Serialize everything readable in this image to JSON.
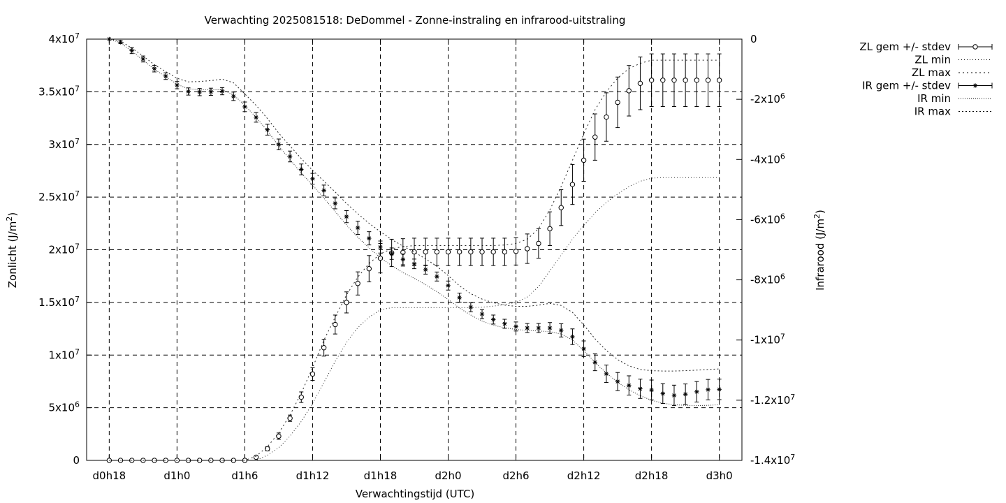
{
  "chart_data": {
    "type": "line",
    "title": "Verwachting 2025081518: DeDommel - Zonne-instraling en infrarood-uitstraling",
    "xlabel": "Verwachtingstijd (UTC)",
    "ylabel_left": "Zonlicht (J/m²)",
    "ylabel_right": "Infrarood (J/m²)",
    "grid": true,
    "legend_position": "outside-right",
    "x_unit": "hours since d0h18",
    "x_tick_hours": [
      0,
      6,
      12,
      18,
      24,
      30,
      36,
      42,
      48,
      54
    ],
    "x_tick_labels": [
      "d0h18",
      "d1h0",
      "d1h6",
      "d1h12",
      "d1h18",
      "d2h0",
      "d2h6",
      "d2h12",
      "d2h18",
      "d3h0"
    ],
    "x_range": [
      -2,
      56
    ],
    "ylim_left": [
      0,
      40000000
    ],
    "ylim_right": [
      -14000000,
      0
    ],
    "left_ticks": [
      0,
      5000000,
      10000000,
      15000000,
      20000000,
      25000000,
      30000000,
      35000000,
      40000000
    ],
    "left_tick_labels": [
      "0",
      "5x10^6",
      "1x10^7",
      "1.5x10^7",
      "2x10^7",
      "2.5x10^7",
      "3x10^7",
      "3.5x10^7",
      "4x10^7"
    ],
    "right_ticks": [
      0,
      -2000000,
      -4000000,
      -6000000,
      -8000000,
      -10000000,
      -12000000,
      -14000000
    ],
    "right_tick_labels": [
      "0",
      "-2x10^6",
      "-4x10^6",
      "-6x10^6",
      "-8x10^6",
      "-1x10^7",
      "-1.2x10^7",
      "-1.4x10^7"
    ],
    "x": [
      0,
      1,
      2,
      3,
      4,
      5,
      6,
      7,
      8,
      9,
      10,
      11,
      12,
      13,
      14,
      15,
      16,
      17,
      18,
      19,
      20,
      21,
      22,
      23,
      24,
      25,
      26,
      27,
      28,
      29,
      30,
      31,
      32,
      33,
      34,
      35,
      36,
      37,
      38,
      39,
      40,
      41,
      42,
      43,
      44,
      45,
      46,
      47,
      48,
      49,
      50,
      51,
      52,
      53,
      54
    ],
    "series": [
      {
        "name": "ZL gem +/- stdev",
        "axis": "left",
        "style": "points-errorbars",
        "marker": "circle",
        "values": [
          0,
          0,
          0,
          0,
          0,
          0,
          0,
          0,
          0,
          0,
          0,
          0,
          0,
          300000,
          1100000,
          2300000,
          4000000,
          6000000,
          8200000,
          10700000,
          12900000,
          15000000,
          16800000,
          18200000,
          19200000,
          19700000,
          19750000,
          19800000,
          19800000,
          19800000,
          19800000,
          19800000,
          19800000,
          19800000,
          19800000,
          19800000,
          19850000,
          20100000,
          20600000,
          22000000,
          24000000,
          26200000,
          28500000,
          30700000,
          32600000,
          34000000,
          35100000,
          35800000,
          36100000,
          36100000,
          36100000,
          36100000,
          36100000,
          36100000,
          36100000
        ],
        "errors": [
          0,
          0,
          0,
          0,
          0,
          0,
          0,
          0,
          0,
          0,
          0,
          0,
          0,
          100000,
          200000,
          300000,
          300000,
          500000,
          600000,
          800000,
          900000,
          1000000,
          1100000,
          1250000,
          1400000,
          1300000,
          1300000,
          1300000,
          1300000,
          1300000,
          1300000,
          1300000,
          1300000,
          1300000,
          1300000,
          1300000,
          1300000,
          1400000,
          1400000,
          1600000,
          1700000,
          1900000,
          2000000,
          2200000,
          2300000,
          2400000,
          2400000,
          2500000,
          2500000,
          2500000,
          2500000,
          2500000,
          2500000,
          2500000,
          2500000
        ]
      },
      {
        "name": "ZL min",
        "axis": "left",
        "style": "dotted",
        "values": [
          0,
          0,
          0,
          0,
          0,
          0,
          0,
          0,
          0,
          0,
          0,
          0,
          0,
          0,
          500000,
          1200000,
          2300000,
          3700000,
          5400000,
          7400000,
          9400000,
          11200000,
          12600000,
          13600000,
          14300000,
          14500000,
          14500000,
          14500000,
          14500000,
          14500000,
          14500000,
          14500000,
          14500000,
          14550000,
          14650000,
          14800000,
          15000000,
          15500000,
          16500000,
          18000000,
          19500000,
          21000000,
          22300000,
          23500000,
          24500000,
          25300000,
          26000000,
          26500000,
          26800000,
          26850000,
          26850000,
          26850000,
          26850000,
          26850000,
          26850000
        ]
      },
      {
        "name": "ZL max",
        "axis": "left",
        "style": "dotted",
        "values": [
          0,
          0,
          0,
          0,
          0,
          0,
          0,
          0,
          0,
          0,
          0,
          0,
          0,
          400000,
          1300000,
          2600000,
          4300000,
          6400000,
          8800000,
          11400000,
          13600000,
          15700000,
          17400000,
          18700000,
          19600000,
          20100000,
          20300000,
          20400000,
          20400000,
          20400000,
          20400000,
          20400000,
          20400000,
          20400000,
          20400000,
          20450000,
          20600000,
          21000000,
          22000000,
          23800000,
          26000000,
          28500000,
          31000000,
          33300000,
          35000000,
          36300000,
          37200000,
          37700000,
          38000000,
          38000000,
          38000000,
          38000000,
          38000000,
          38000000,
          38000000
        ]
      },
      {
        "name": "IR gem +/- stdev",
        "axis": "right",
        "style": "points-errorbars",
        "marker": "asterisk",
        "values": [
          0,
          -100000,
          -380000,
          -660000,
          -980000,
          -1230000,
          -1530000,
          -1740000,
          -1760000,
          -1750000,
          -1730000,
          -1900000,
          -2250000,
          -2600000,
          -3010000,
          -3500000,
          -3900000,
          -4330000,
          -4640000,
          -5030000,
          -5460000,
          -5900000,
          -6270000,
          -6620000,
          -6910000,
          -7130000,
          -7320000,
          -7470000,
          -7660000,
          -7890000,
          -8190000,
          -8590000,
          -8910000,
          -9140000,
          -9320000,
          -9460000,
          -9550000,
          -9600000,
          -9600000,
          -9600000,
          -9680000,
          -9890000,
          -10290000,
          -10740000,
          -11120000,
          -11380000,
          -11510000,
          -11620000,
          -11660000,
          -11780000,
          -11840000,
          -11800000,
          -11720000,
          -11650000,
          -11640000
        ],
        "errors": [
          0,
          50000,
          100000,
          100000,
          110000,
          110000,
          120000,
          120000,
          120000,
          120000,
          120000,
          140000,
          160000,
          160000,
          180000,
          180000,
          180000,
          180000,
          180000,
          180000,
          180000,
          200000,
          220000,
          220000,
          200000,
          190000,
          180000,
          160000,
          150000,
          150000,
          150000,
          150000,
          150000,
          150000,
          150000,
          150000,
          150000,
          150000,
          150000,
          180000,
          220000,
          260000,
          260000,
          280000,
          290000,
          300000,
          320000,
          320000,
          330000,
          330000,
          340000,
          340000,
          340000,
          340000,
          340000
        ]
      },
      {
        "name": "IR min",
        "axis": "right",
        "style": "dotted",
        "values": [
          0,
          -120000,
          -400000,
          -700000,
          -1000000,
          -1250000,
          -1500000,
          -1650000,
          -1680000,
          -1680000,
          -1680000,
          -1850000,
          -2200000,
          -2600000,
          -3050000,
          -3550000,
          -4000000,
          -4450000,
          -4850000,
          -5280000,
          -5730000,
          -6180000,
          -6580000,
          -6940000,
          -7260000,
          -7530000,
          -7760000,
          -7950000,
          -8160000,
          -8390000,
          -8650000,
          -8940000,
          -9170000,
          -9370000,
          -9510000,
          -9590000,
          -9650000,
          -9680000,
          -9700000,
          -9720000,
          -9800000,
          -10000000,
          -10350000,
          -10750000,
          -11100000,
          -11400000,
          -11650000,
          -11850000,
          -12000000,
          -12100000,
          -12150000,
          -12170000,
          -12180000,
          -12170000,
          -12150000
        ]
      },
      {
        "name": "IR max",
        "axis": "right",
        "style": "dotted",
        "values": [
          0,
          -60000,
          -300000,
          -560000,
          -850000,
          -1080000,
          -1300000,
          -1420000,
          -1410000,
          -1380000,
          -1330000,
          -1450000,
          -1820000,
          -2200000,
          -2640000,
          -3120000,
          -3550000,
          -3970000,
          -4360000,
          -4720000,
          -5080000,
          -5460000,
          -5800000,
          -6120000,
          -6400000,
          -6660000,
          -6880000,
          -7080000,
          -7300000,
          -7550000,
          -7860000,
          -8200000,
          -8460000,
          -8640000,
          -8760000,
          -8840000,
          -8880000,
          -8880000,
          -8840000,
          -8780000,
          -8850000,
          -9080000,
          -9500000,
          -9960000,
          -10350000,
          -10650000,
          -10860000,
          -10980000,
          -11020000,
          -11030000,
          -11030000,
          -11020000,
          -11000000,
          -10980000,
          -10960000
        ]
      }
    ]
  }
}
